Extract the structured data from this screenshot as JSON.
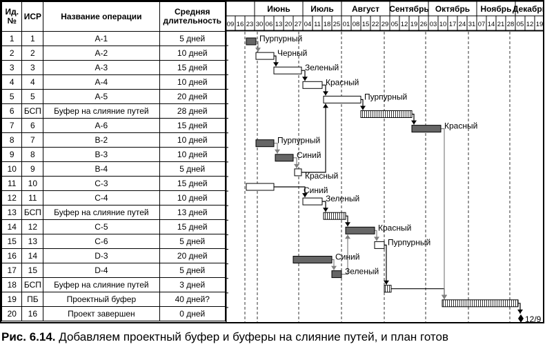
{
  "table": {
    "headers": {
      "id": "Ид. №",
      "wbs": "ИСР",
      "name": "Название операции",
      "duration": "Средняя длительность"
    },
    "rows": [
      {
        "id": "1",
        "wbs": "1",
        "name": "A-1",
        "duration": "5 дней"
      },
      {
        "id": "2",
        "wbs": "2",
        "name": "A-2",
        "duration": "10 дней"
      },
      {
        "id": "3",
        "wbs": "3",
        "name": "A-3",
        "duration": "15 дней"
      },
      {
        "id": "4",
        "wbs": "4",
        "name": "A-4",
        "duration": "10 дней"
      },
      {
        "id": "5",
        "wbs": "5",
        "name": "A-5",
        "duration": "20 дней"
      },
      {
        "id": "6",
        "wbs": "БСП",
        "name": "Буфер на слияние путей",
        "duration": "28 дней"
      },
      {
        "id": "7",
        "wbs": "6",
        "name": "A-6",
        "duration": "15 дней"
      },
      {
        "id": "8",
        "wbs": "7",
        "name": "B-2",
        "duration": "10 дней"
      },
      {
        "id": "9",
        "wbs": "8",
        "name": "B-3",
        "duration": "10 дней"
      },
      {
        "id": "10",
        "wbs": "9",
        "name": "B-4",
        "duration": "5 дней"
      },
      {
        "id": "11",
        "wbs": "10",
        "name": "C-3",
        "duration": "15 дней"
      },
      {
        "id": "12",
        "wbs": "11",
        "name": "C-4",
        "duration": "10 дней"
      },
      {
        "id": "13",
        "wbs": "БСП",
        "name": "Буфер на слияние путей",
        "duration": "13 дней"
      },
      {
        "id": "14",
        "wbs": "12",
        "name": "C-5",
        "duration": "15 дней"
      },
      {
        "id": "15",
        "wbs": "13",
        "name": "C-6",
        "duration": "5 дней"
      },
      {
        "id": "16",
        "wbs": "14",
        "name": "D-3",
        "duration": "20 дней"
      },
      {
        "id": "17",
        "wbs": "15",
        "name": "D-4",
        "duration": "5 дней"
      },
      {
        "id": "18",
        "wbs": "БСП",
        "name": "Буфер на слияние путей",
        "duration": "3 дней"
      },
      {
        "id": "19",
        "wbs": "ПБ",
        "name": "Проектный буфер",
        "duration": "40 дней?"
      },
      {
        "id": "20",
        "wbs": "16",
        "name": "Проект завершен",
        "duration": "0 дней"
      }
    ]
  },
  "chart_data": {
    "type": "gantt",
    "timeline": {
      "months": [
        {
          "label": "",
          "weeks": 3
        },
        {
          "label": "Июнь",
          "weeks": 5
        },
        {
          "label": "Июль",
          "weeks": 4
        },
        {
          "label": "Август",
          "weeks": 5
        },
        {
          "label": "Сентябрь",
          "weeks": 4
        },
        {
          "label": "Октябрь",
          "weeks": 5
        },
        {
          "label": "Ноябрь",
          "weeks": 4
        },
        {
          "label": "Декабрь",
          "weeks": 3
        }
      ],
      "weeks": [
        "09",
        "16",
        "23",
        "30",
        "06",
        "13",
        "20",
        "27",
        "04",
        "11",
        "18",
        "25",
        "01",
        "08",
        "15",
        "22",
        "29",
        "05",
        "12",
        "19",
        "26",
        "03",
        "10",
        "17",
        "24",
        "31",
        "07",
        "14",
        "21",
        "28",
        "05",
        "12",
        "19"
      ],
      "first_week": "05-09",
      "month_starts": [
        "06-01",
        "07-01",
        "08-01",
        "09-01",
        "10-01",
        "11-01",
        "12-01"
      ]
    },
    "bars": [
      {
        "row": 1,
        "start": "05-24",
        "end": "05-31",
        "style": "critical",
        "label": "Пурпурный"
      },
      {
        "row": 2,
        "start": "05-31",
        "end": "06-13",
        "style": "task",
        "label": "Черный"
      },
      {
        "row": 3,
        "start": "06-13",
        "end": "07-03",
        "style": "task",
        "label": "Зеленый"
      },
      {
        "row": 4,
        "start": "07-04",
        "end": "07-18",
        "style": "task",
        "label": "Красный"
      },
      {
        "row": 5,
        "start": "07-19",
        "end": "08-15",
        "style": "task",
        "label": "Пурпурный"
      },
      {
        "row": 6,
        "start": "08-15",
        "end": "09-21",
        "style": "buffer",
        "label": ""
      },
      {
        "row": 7,
        "start": "09-21",
        "end": "10-12",
        "style": "critical",
        "label": "Красный"
      },
      {
        "row": 8,
        "start": "05-31",
        "end": "06-13",
        "style": "critical",
        "label": "Пурпурный"
      },
      {
        "row": 9,
        "start": "06-14",
        "end": "06-27",
        "style": "critical",
        "label": "Синий"
      },
      {
        "row": 10,
        "start": "06-28",
        "end": "07-03",
        "style": "task",
        "label": "Красный"
      },
      {
        "row": 11,
        "start": "05-24",
        "end": "06-13",
        "style": "task",
        "label": "Синий"
      },
      {
        "row": 12,
        "start": "07-04",
        "end": "07-18",
        "style": "task",
        "label": "Зеленый"
      },
      {
        "row": 13,
        "start": "07-19",
        "end": "08-04",
        "style": "buffer",
        "label": ""
      },
      {
        "row": 14,
        "start": "08-04",
        "end": "08-25",
        "style": "critical",
        "label": "Красный"
      },
      {
        "row": 15,
        "start": "08-25",
        "end": "09-01",
        "style": "task",
        "label": "Пурпурный"
      },
      {
        "row": 16,
        "start": "06-27",
        "end": "07-25",
        "style": "critical",
        "label": "Синий"
      },
      {
        "row": 17,
        "start": "07-25",
        "end": "08-01",
        "style": "critical",
        "label": "Зеленый"
      },
      {
        "row": 18,
        "start": "09-01",
        "end": "09-06",
        "style": "buffer",
        "label": ""
      },
      {
        "row": 19,
        "start": "10-13",
        "end": "12-07",
        "style": "buffer",
        "label": ""
      }
    ],
    "milestone": {
      "row": 20,
      "date": "12-09",
      "label": "12/9"
    },
    "links": [
      {
        "from": 1,
        "to": 2,
        "color": "gray"
      },
      {
        "from": 2,
        "to": 3,
        "color": "black"
      },
      {
        "from": 3,
        "to": 4,
        "color": "black"
      },
      {
        "from": 4,
        "to": 5,
        "color": "black"
      },
      {
        "from": 5,
        "to": 6,
        "color": "black"
      },
      {
        "from": 6,
        "to": 7,
        "color": "black"
      },
      {
        "from": 8,
        "to": 9,
        "color": "gray"
      },
      {
        "from": 9,
        "to": 10,
        "color": "gray"
      },
      {
        "from": 10,
        "to": 5,
        "color": "black"
      },
      {
        "from": 11,
        "to": 12,
        "color": "black"
      },
      {
        "from": 12,
        "to": 13,
        "color": "black"
      },
      {
        "from": 13,
        "to": 14,
        "color": "black"
      },
      {
        "from": 14,
        "to": 15,
        "color": "gray"
      },
      {
        "from": 16,
        "to": 17,
        "color": "gray"
      },
      {
        "from": 17,
        "to": 14,
        "color": "gray"
      },
      {
        "from": 15,
        "to": 18,
        "color": "black"
      },
      {
        "from": 18,
        "to": 19,
        "color": "black"
      },
      {
        "from": 7,
        "to": 19,
        "color": "gray"
      },
      {
        "from": 19,
        "to": 20,
        "color": "black"
      }
    ],
    "colors": {
      "critical": "#666666",
      "task": "#ffffff",
      "buffer_stripe": "#000000",
      "gray_link": "#808080"
    }
  },
  "caption": {
    "number": "Рис. 6.14.",
    "text": " Добавляем проектный буфер и буферы на слияние путей, и план готов"
  }
}
